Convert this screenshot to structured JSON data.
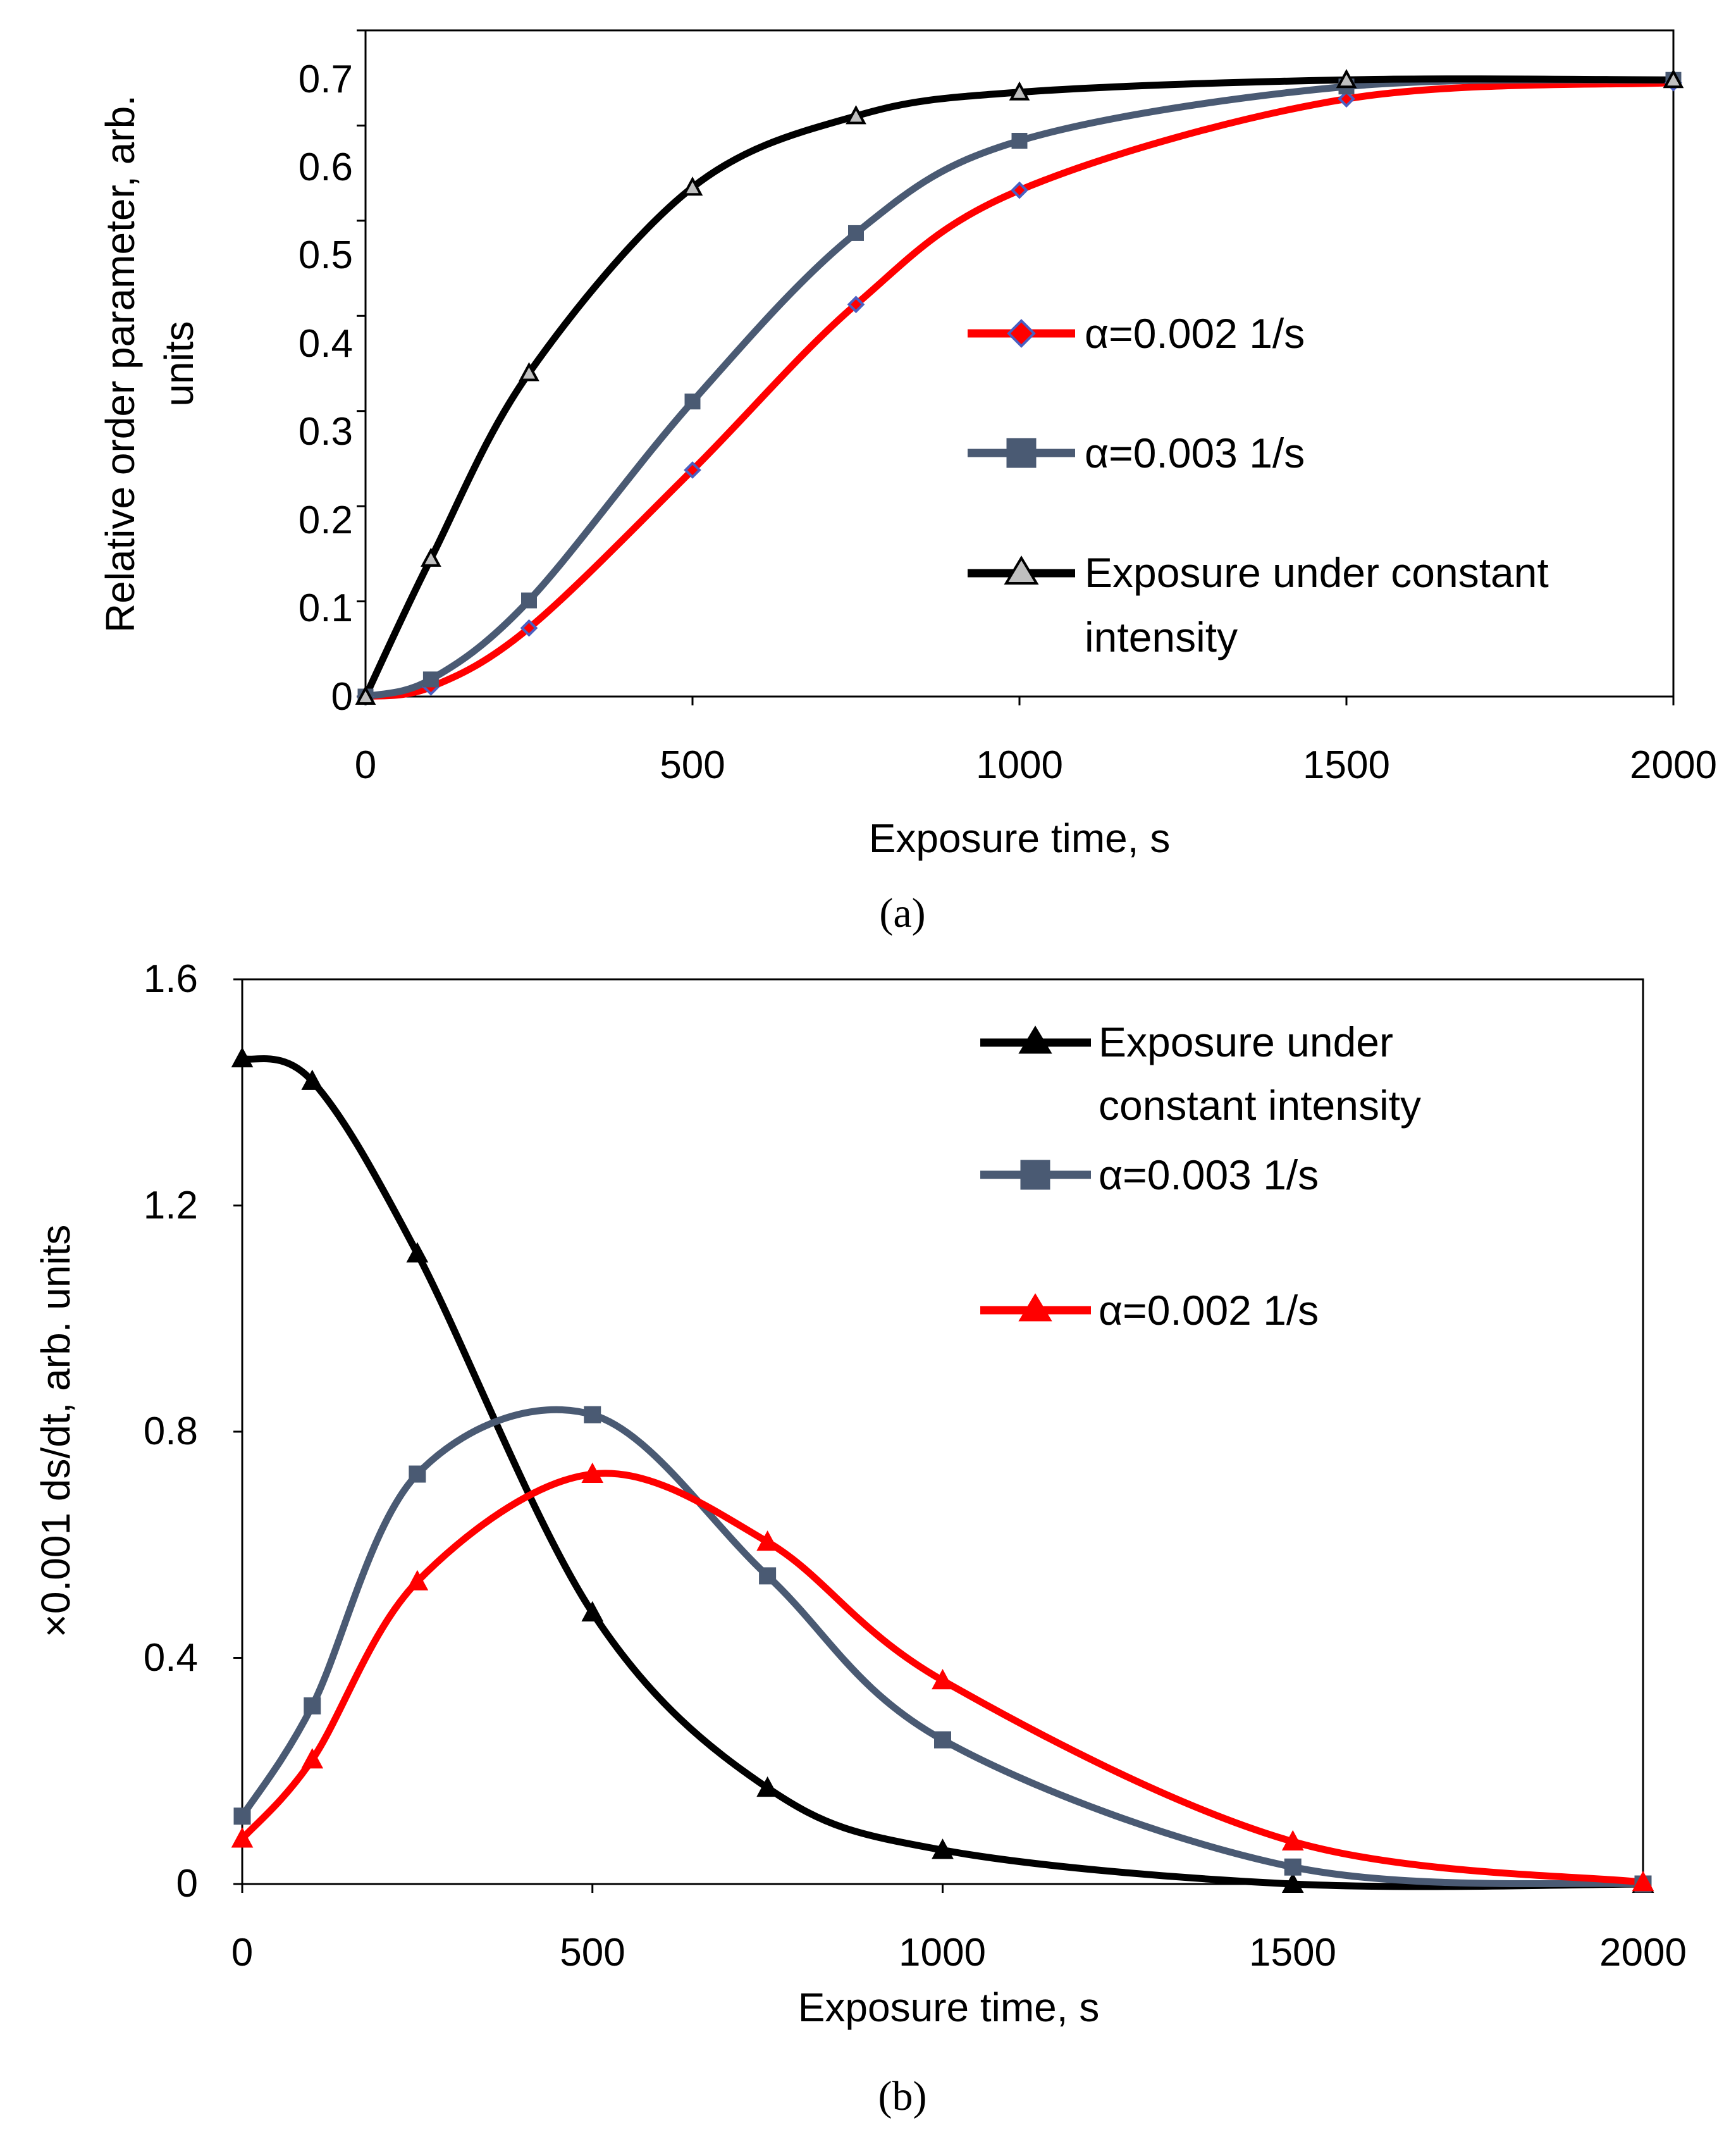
{
  "chart_data": [
    {
      "panel": "a",
      "type": "line",
      "panel_label": "(a)",
      "xlabel": "Exposure time, s",
      "ylabel": "Relative order parameter, arb. units",
      "ylabel_lines": [
        "Relative order parameter, arb.",
        "units"
      ],
      "xlim": [
        0,
        2000
      ],
      "ylim": [
        0,
        0.7
      ],
      "xticks": [
        0,
        500,
        1000,
        1500,
        2000
      ],
      "xtick_labels": [
        "0",
        "500",
        "1000",
        "1500",
        "2000"
      ],
      "yticks": [
        0,
        0.1,
        0.2,
        0.3,
        0.4,
        0.5,
        0.6,
        0.7
      ],
      "ytick_labels": [
        "0",
        "0.1",
        "0.2",
        "0.3",
        "0.4",
        "0.5",
        "0.6",
        "0.7"
      ],
      "legend_position": "center-right",
      "series": [
        {
          "name": "α=0.002 1/s",
          "legend_lines": [
            "α=0.002 1/s"
          ],
          "color": "#ff0000",
          "marker": "diamond",
          "marker_fill": "#ff0000",
          "marker_stroke": "#4a5fc1",
          "x": [
            0,
            100,
            250,
            500,
            750,
            1000,
            1500,
            2000
          ],
          "y": [
            0.0,
            0.01,
            0.072,
            0.238,
            0.412,
            0.532,
            0.628,
            0.645
          ]
        },
        {
          "name": "α=0.003 1/s",
          "legend_lines": [
            "α=0.003 1/s"
          ],
          "color": "#4a5a73",
          "marker": "square",
          "marker_fill": "#4a5a73",
          "marker_stroke": "#4a5a73",
          "x": [
            0,
            100,
            250,
            500,
            750,
            1000,
            1500,
            2000
          ],
          "y": [
            0.0,
            0.018,
            0.101,
            0.31,
            0.487,
            0.584,
            0.641,
            0.648
          ]
        },
        {
          "name": "Exposure under constant intensity",
          "legend_lines": [
            "Exposure under constant",
            "intensity"
          ],
          "color": "#000000",
          "marker": "triangle",
          "marker_fill": "#bfbfbf",
          "marker_stroke": "#000000",
          "x": [
            0,
            100,
            250,
            500,
            750,
            1000,
            1500,
            2000
          ],
          "y": [
            0.0,
            0.145,
            0.34,
            0.535,
            0.61,
            0.635,
            0.648,
            0.648
          ]
        }
      ]
    },
    {
      "panel": "b",
      "type": "line",
      "panel_label": "(b)",
      "xlabel": "Exposure time, s",
      "ylabel": "×0.001 ds/dt, arb. units",
      "ylabel_lines": [
        "×0.001 ds/dt, arb. units"
      ],
      "xlim": [
        0,
        2000
      ],
      "ylim": [
        0,
        1.6
      ],
      "xticks": [
        0,
        500,
        1000,
        1500,
        2000
      ],
      "xtick_labels": [
        "0",
        "500",
        "1000",
        "1500",
        "2000"
      ],
      "yticks": [
        0,
        0.4,
        0.8,
        1.2,
        1.6
      ],
      "ytick_labels": [
        "0",
        "0.4",
        "0.8",
        "1.2",
        "1.6"
      ],
      "legend_position": "top-right",
      "series": [
        {
          "name": "Exposure under constant intensity",
          "legend_lines": [
            "Exposure under",
            "constant intensity"
          ],
          "color": "#000000",
          "marker": "triangle",
          "marker_fill": "#000000",
          "marker_stroke": "#000000",
          "x": [
            0,
            100,
            250,
            500,
            750,
            1000,
            1500,
            2000
          ],
          "y": [
            1.46,
            1.42,
            1.115,
            0.48,
            0.17,
            0.06,
            0.0,
            0.0
          ]
        },
        {
          "name": "α=0.003 1/s",
          "legend_lines": [
            "α=0.003 1/s"
          ],
          "color": "#4a5a73",
          "marker": "square",
          "marker_fill": "#4a5a73",
          "marker_stroke": "#4a5a73",
          "x": [
            0,
            100,
            250,
            500,
            750,
            1000,
            1500,
            2000
          ],
          "y": [
            0.12,
            0.315,
            0.725,
            0.83,
            0.545,
            0.255,
            0.03,
            0.0
          ]
        },
        {
          "name": "α=0.002 1/s",
          "legend_lines": [
            "α=0.002 1/s"
          ],
          "color": "#ff0000",
          "marker": "triangle",
          "marker_fill": "#ff0000",
          "marker_stroke": "#ff0000",
          "x": [
            0,
            100,
            250,
            500,
            750,
            1000,
            1500,
            2000
          ],
          "y": [
            0.08,
            0.22,
            0.535,
            0.725,
            0.605,
            0.36,
            0.075,
            0.003
          ]
        }
      ]
    }
  ]
}
